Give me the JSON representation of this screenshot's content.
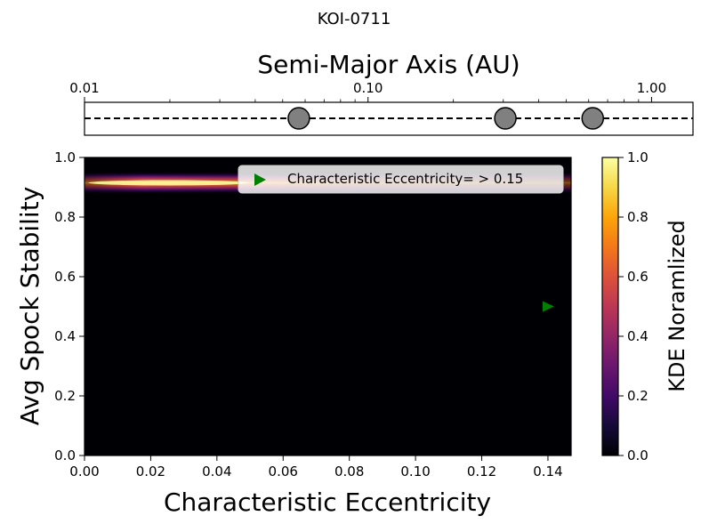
{
  "figure": {
    "title": "KOI-0711"
  },
  "chart_data": [
    {
      "type": "scatter",
      "title": "",
      "xlabel": "Semi-Major Axis (AU)",
      "ylabel": "",
      "xscale": "log",
      "xlim": [
        0.01,
        1.4
      ],
      "xticks": [
        0.01,
        0.1,
        1.0
      ],
      "xtick_labels": [
        "0.01",
        "0.10",
        "1.00"
      ],
      "xaxis_position": "top",
      "line_style": "dashed",
      "marker_color": "#808080",
      "planets": [
        {
          "a": 0.057
        },
        {
          "a": 0.305
        },
        {
          "a": 0.62
        }
      ]
    },
    {
      "type": "heatmap",
      "title": "",
      "xlabel": "Characteristic Eccentricity",
      "ylabel": "Avg Spock Stability",
      "xlim": [
        0.0,
        0.147
      ],
      "ylim": [
        0.0,
        1.0
      ],
      "xticks": [
        "0.00",
        "0.02",
        "0.04",
        "0.06",
        "0.08",
        "0.10",
        "0.12",
        "0.14"
      ],
      "yticks": [
        "0.0",
        "0.2",
        "0.4",
        "0.6",
        "0.8",
        "1.0"
      ],
      "colormap": "inferno",
      "band": {
        "y_center": 0.915,
        "y_halfwidth": 0.03,
        "peak_x": 0.02
      },
      "markers": [
        {
          "x": 0.14,
          "y": 0.5,
          "shape": "triangle-right",
          "color": "#008000"
        }
      ],
      "legend": {
        "label": "Characteristic Eccentricity= > 0.15",
        "placement": "top-right"
      },
      "colorbar": {
        "label": "KDE Noramlized",
        "range": [
          0.0,
          1.0
        ],
        "ticks": [
          "0.0",
          "0.2",
          "0.4",
          "0.6",
          "0.8",
          "1.0"
        ]
      }
    }
  ]
}
